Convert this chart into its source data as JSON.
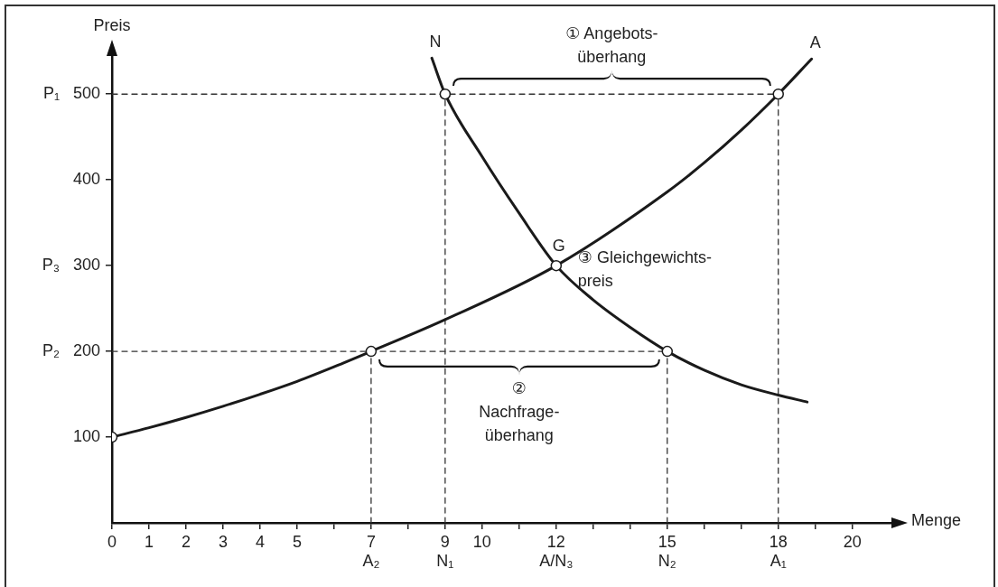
{
  "chart_data": {
    "type": "line",
    "xlabel": "Menge",
    "ylabel": "Preis",
    "xlim": [
      0,
      21.3
    ],
    "ylim": [
      0,
      555
    ],
    "xticks": [
      0,
      1,
      2,
      3,
      4,
      5,
      {
        "value": 6,
        "label": null
      },
      {
        "value": 7,
        "label": "7\nA₂"
      },
      {
        "value": 8,
        "label": null
      },
      {
        "value": 9,
        "label": "9\nN₁"
      },
      10,
      {
        "value": 11,
        "label": null
      },
      {
        "value": 12,
        "label": "12\nA/N₃"
      },
      {
        "value": 13,
        "label": null
      },
      {
        "value": 14,
        "label": null
      },
      {
        "value": 15,
        "label": "15\nN₂"
      },
      {
        "value": 16,
        "label": null
      },
      {
        "value": 17,
        "label": null
      },
      {
        "value": 18,
        "label": "18\nA₁"
      },
      {
        "value": 19,
        "label": null
      },
      20
    ],
    "yticks": [
      100,
      {
        "value": 200,
        "label": "P₂   200"
      },
      {
        "value": 300,
        "label": "P₃   300"
      },
      400,
      {
        "value": 500,
        "label": "P₁   500"
      }
    ],
    "grid": false,
    "legend": false,
    "series": [
      {
        "name": "N",
        "color": "#1a1a1a",
        "line_style": "solid",
        "marker": "none",
        "x": [
          8.64,
          9,
          10,
          11,
          12,
          13,
          14,
          15,
          16,
          17,
          18,
          18.78
        ],
        "values": [
          542,
          500,
          427,
          361,
          300,
          260,
          228,
          200,
          178,
          161,
          149,
          141
        ]
      },
      {
        "name": "A",
        "color": "#1a1a1a",
        "line_style": "solid",
        "marker": "none",
        "x": [
          0,
          1,
          2,
          3,
          4,
          5,
          6,
          7,
          9,
          12,
          15,
          16,
          17,
          18,
          18.9
        ],
        "values": [
          100,
          111,
          123,
          136,
          150,
          165,
          182,
          200,
          237,
          300,
          386,
          420,
          458,
          500,
          541
        ]
      },
      {
        "type": "line",
        "color": "#333333",
        "line_style": "dashed",
        "marker": "none",
        "x": [
          0,
          18
        ],
        "values": [
          500,
          500
        ]
      },
      {
        "type": "line",
        "color": "#333333",
        "line_style": "dashed",
        "marker": "none",
        "x": [
          9,
          9
        ],
        "values": [
          0,
          500
        ]
      },
      {
        "type": "line",
        "color": "#333333",
        "line_style": "dashed",
        "marker": "none",
        "x": [
          18,
          18
        ],
        "values": [
          0,
          500
        ]
      },
      {
        "type": "line",
        "color": "#333333",
        "line_style": "dashed",
        "marker": "none",
        "x": [
          0,
          15
        ],
        "values": [
          200,
          200
        ]
      },
      {
        "type": "line",
        "color": "#333333",
        "line_style": "dashed",
        "marker": "none",
        "x": [
          7,
          7
        ],
        "values": [
          0,
          200
        ]
      },
      {
        "type": "line",
        "color": "#333333",
        "line_style": "dashed",
        "marker": "none",
        "x": [
          15,
          15
        ],
        "values": [
          0,
          200
        ]
      },
      {
        "type": "scatter",
        "color": "#1a1a1a",
        "marker": "circle",
        "x": [
          0,
          7,
          9,
          12,
          15,
          18
        ],
        "values": [
          100,
          200,
          500,
          300,
          200,
          500
        ]
      }
    ],
    "annotations": [
      {
        "text": "① Angebots-\nüberhang",
        "x": 13.5,
        "y": 500
      },
      {
        "text": "②\nNachfrage-\nüberhang",
        "x": 11,
        "y": 200
      },
      {
        "text": "G",
        "x": 12,
        "y": 300
      },
      {
        "text": "③ Gleichgewichts-\npreis",
        "x": 12,
        "y": 300
      }
    ]
  }
}
